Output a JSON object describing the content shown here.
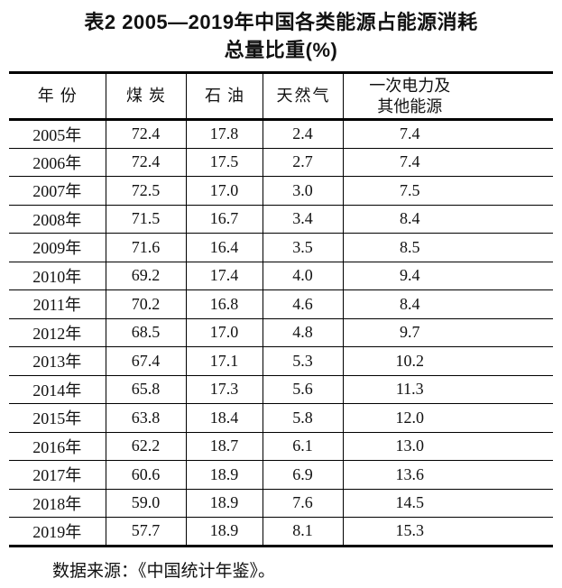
{
  "title": {
    "line1": "表2 2005—2019年中国各类能源占能源消耗",
    "line2": "总量比重(%)"
  },
  "table": {
    "columns": [
      "年份",
      "煤炭",
      "石油",
      "天然气",
      "一次电力及\n其他能源"
    ],
    "rows": [
      {
        "year": "2005年",
        "values": [
          "72.4",
          "17.8",
          "2.4",
          "7.4"
        ]
      },
      {
        "year": "2006年",
        "values": [
          "72.4",
          "17.5",
          "2.7",
          "7.4"
        ]
      },
      {
        "year": "2007年",
        "values": [
          "72.5",
          "17.0",
          "3.0",
          "7.5"
        ]
      },
      {
        "year": "2008年",
        "values": [
          "71.5",
          "16.7",
          "3.4",
          "8.4"
        ]
      },
      {
        "year": "2009年",
        "values": [
          "71.6",
          "16.4",
          "3.5",
          "8.5"
        ]
      },
      {
        "year": "2010年",
        "values": [
          "69.2",
          "17.4",
          "4.0",
          "9.4"
        ]
      },
      {
        "year": "2011年",
        "values": [
          "70.2",
          "16.8",
          "4.6",
          "8.4"
        ]
      },
      {
        "year": "2012年",
        "values": [
          "68.5",
          "17.0",
          "4.8",
          "9.7"
        ]
      },
      {
        "year": "2013年",
        "values": [
          "67.4",
          "17.1",
          "5.3",
          "10.2"
        ]
      },
      {
        "year": "2014年",
        "values": [
          "65.8",
          "17.3",
          "5.6",
          "11.3"
        ]
      },
      {
        "year": "2015年",
        "values": [
          "63.8",
          "18.4",
          "5.8",
          "12.0"
        ]
      },
      {
        "year": "2016年",
        "values": [
          "62.2",
          "18.7",
          "6.1",
          "13.0"
        ]
      },
      {
        "year": "2017年",
        "values": [
          "60.6",
          "18.9",
          "6.9",
          "13.6"
        ]
      },
      {
        "year": "2018年",
        "values": [
          "59.0",
          "18.9",
          "7.6",
          "14.5"
        ]
      },
      {
        "year": "2019年",
        "values": [
          "57.7",
          "18.9",
          "8.1",
          "15.3"
        ]
      }
    ]
  },
  "footer": {
    "text": "数据来源：《中国统计年鉴》。"
  },
  "colors": {
    "background": "#ffffff",
    "text": "#111111",
    "rule": "#000000"
  }
}
